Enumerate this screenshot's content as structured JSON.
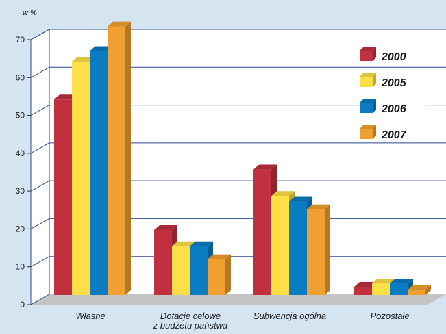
{
  "chart_data": {
    "type": "bar",
    "unit_label": "w %",
    "categories": [
      "Własne",
      "Dotacje celowe z budżetu państwa",
      "Subwencja ogólna",
      "Pozostałe"
    ],
    "category_lines": [
      [
        "Własne"
      ],
      [
        "Dotacje celowe",
        "z budżetu państwa"
      ],
      [
        "Subwencja ogólna"
      ],
      [
        "Pozostałe"
      ]
    ],
    "series": [
      {
        "name": "2000",
        "values": [
          51.5,
          17,
          33,
          2
        ],
        "color": "#c0303f"
      },
      {
        "name": "2005",
        "values": [
          61.5,
          12.7,
          26,
          2.9
        ],
        "color": "#fde047"
      },
      {
        "name": "2006",
        "values": [
          64.3,
          12.7,
          24.5,
          2.9
        ],
        "color": "#0a7cc2"
      },
      {
        "name": "2007",
        "values": [
          70.8,
          9.3,
          22.5,
          1.2
        ],
        "color": "#f0a030"
      }
    ],
    "yticks": [
      0,
      10,
      20,
      30,
      40,
      50,
      60,
      70
    ],
    "ylim": [
      0,
      70
    ],
    "grid": true,
    "legend_position": "top-right",
    "colors": {
      "background": "#d4e4f1",
      "plot_background": "#ffffff",
      "grid": "#2b4a8a",
      "floor": "#c4c4c4"
    }
  }
}
